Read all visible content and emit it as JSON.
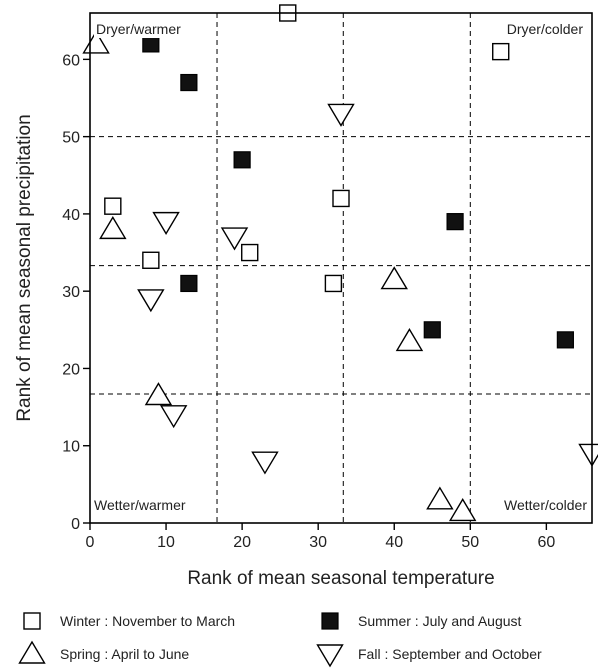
{
  "chart_data": {
    "type": "scatter",
    "xlabel": "Rank of mean seasonal temperature",
    "ylabel": "Rank of mean seasonal precipitation",
    "xlim": [
      0,
      66
    ],
    "ylim": [
      0,
      66
    ],
    "xticks": [
      0,
      10,
      20,
      30,
      40,
      50,
      60
    ],
    "yticks": [
      0,
      10,
      20,
      30,
      40,
      50,
      60
    ],
    "grid": {
      "style": "dashed",
      "x": [
        16.7,
        33.3,
        50
      ],
      "y": [
        16.7,
        33.3,
        50
      ]
    },
    "corner_labels": {
      "top_left": "Dryer/warmer",
      "top_right": "Dryer/colder",
      "bottom_left": "Wetter/warmer",
      "bottom_right": "Wetter/colder"
    },
    "series": [
      {
        "name": "Winter : November to March",
        "marker": "open-square",
        "color": "#000000",
        "points": [
          {
            "x": 26,
            "y": 66
          },
          {
            "x": 54,
            "y": 61
          },
          {
            "x": 3,
            "y": 41
          },
          {
            "x": 33,
            "y": 42
          },
          {
            "x": 21,
            "y": 35
          },
          {
            "x": 8,
            "y": 34
          },
          {
            "x": 32,
            "y": 31
          }
        ]
      },
      {
        "name": "Summer : July and August",
        "marker": "filled-square",
        "color": "#000000",
        "points": [
          {
            "x": 8,
            "y": 62
          },
          {
            "x": 13,
            "y": 57
          },
          {
            "x": 20,
            "y": 47
          },
          {
            "x": 48,
            "y": 39
          },
          {
            "x": 13,
            "y": 31
          },
          {
            "x": 45,
            "y": 25
          },
          {
            "x": 62.5,
            "y": 23.7
          }
        ]
      },
      {
        "name": "Spring : April to June",
        "marker": "triangle-up",
        "color": "#000000",
        "points": [
          {
            "x": 0.8,
            "y": 62
          },
          {
            "x": 3,
            "y": 38
          },
          {
            "x": 40,
            "y": 31.5
          },
          {
            "x": 42,
            "y": 23.5
          },
          {
            "x": 9,
            "y": 16.5
          },
          {
            "x": 46,
            "y": 3
          },
          {
            "x": 49,
            "y": 1.5
          }
        ]
      },
      {
        "name": "Fall : September and October",
        "marker": "triangle-down",
        "color": "#000000",
        "points": [
          {
            "x": 33,
            "y": 53
          },
          {
            "x": 10,
            "y": 39
          },
          {
            "x": 19,
            "y": 37
          },
          {
            "x": 8,
            "y": 29
          },
          {
            "x": 11,
            "y": 14
          },
          {
            "x": 23,
            "y": 8
          },
          {
            "x": 66,
            "y": 9
          }
        ]
      }
    ]
  }
}
